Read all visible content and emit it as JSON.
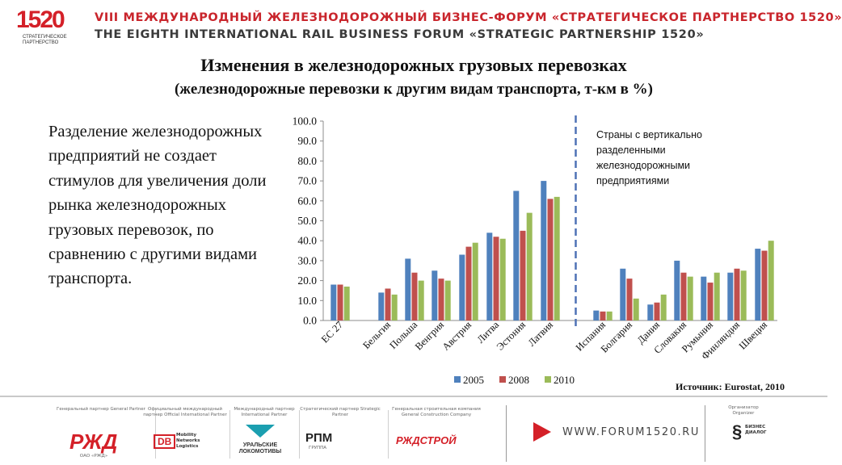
{
  "header": {
    "logo_text": "1520",
    "logo_sub": "СТРАТЕГИЧЕСКОЕ ПАРТНЕРСТВО",
    "forum_ru": "VIII МЕЖДУНАРОДНЫЙ ЖЕЛЕЗНОДОРОЖНЫЙ БИЗНЕС-ФОРУМ «СТРАТЕГИЧЕСКОЕ ПАРТНЕРСТВО 1520»",
    "forum_en": "THE EIGHTH INTERNATIONAL RAIL BUSINESS FORUM «STRATEGIC PARTNERSHIP 1520»"
  },
  "slide": {
    "title": "Изменения в железнодорожных грузовых перевозках",
    "subtitle": "(железнодорожные перевозки к другим видам транспорта, т-км в %)",
    "side_text": "Разделение железнодорожных предприятий не создает стимулов для увеличения доли рынка железнодорожных грузовых перевозок, по сравнению с другими видами транспорта.",
    "note": "Страны с вертикально разделенными железнодорожными предприятиями",
    "source": "Источник: Eurostat, 2010"
  },
  "chart_data": {
    "type": "bar",
    "categories": [
      "EC 27",
      "Бельгия",
      "Польша",
      "Венгрия",
      "Австрия",
      "Литва",
      "Эстония",
      "Латвия",
      "Испания",
      "Болгария",
      "Дания",
      "Словакия",
      "Румыния",
      "Финляндия",
      "Швеция"
    ],
    "series": [
      {
        "name": "2005",
        "color": "#4f81bd",
        "values": [
          18,
          14,
          31,
          25,
          33,
          44,
          65,
          70,
          5,
          26,
          8,
          30,
          22,
          24,
          36
        ]
      },
      {
        "name": "2008",
        "color": "#c0504d",
        "values": [
          18,
          16,
          24,
          21,
          37,
          42,
          45,
          61,
          4.5,
          21,
          9,
          24,
          19,
          26,
          35
        ]
      },
      {
        "name": "2010",
        "color": "#9bbb59",
        "values": [
          17,
          13,
          20,
          20,
          39,
          41,
          54,
          62,
          4.5,
          11,
          13,
          22,
          24,
          25,
          40
        ]
      }
    ],
    "y_ticks": [
      "0.0",
      "10.0",
      "20.0",
      "30.0",
      "40.0",
      "50.0",
      "60.0",
      "70.0",
      "80.0",
      "90.0",
      "100.0"
    ],
    "ylim": [
      0,
      100
    ],
    "legend": "bottom",
    "grid": false,
    "divider_after": "Латвия"
  },
  "footer": {
    "partners": [
      {
        "caption": "Генеральный партнер General Partner",
        "logo": "РЖД",
        "sub": "ОАО «РЖД»",
        "color": "#d42028"
      },
      {
        "caption": "Официальный международный партнер Official International Partner",
        "logo": "DB",
        "sub": "Mobility Networks Logistics",
        "color": "#d42028"
      },
      {
        "caption": "Международный партнер International Partner",
        "logo": "УРАЛЬСКИЕ ЛОКОМОТИВЫ",
        "sub": "",
        "color": "#1b9fb0"
      },
      {
        "caption": "Стратегический партнер Strategic Partner",
        "logo": "РПМ",
        "sub": "ГРУППА",
        "color": "#333333"
      },
      {
        "caption": "Генеральная строительная компания General Construction Company",
        "logo": "РЖДСТРОЙ",
        "sub": "",
        "color": "#d42028"
      }
    ],
    "website": "WWW.FORUM1520.RU",
    "organizer_caption": "Организатор Organizer",
    "organizer_logo": "БИЗНЕС ДИАЛОГ"
  }
}
